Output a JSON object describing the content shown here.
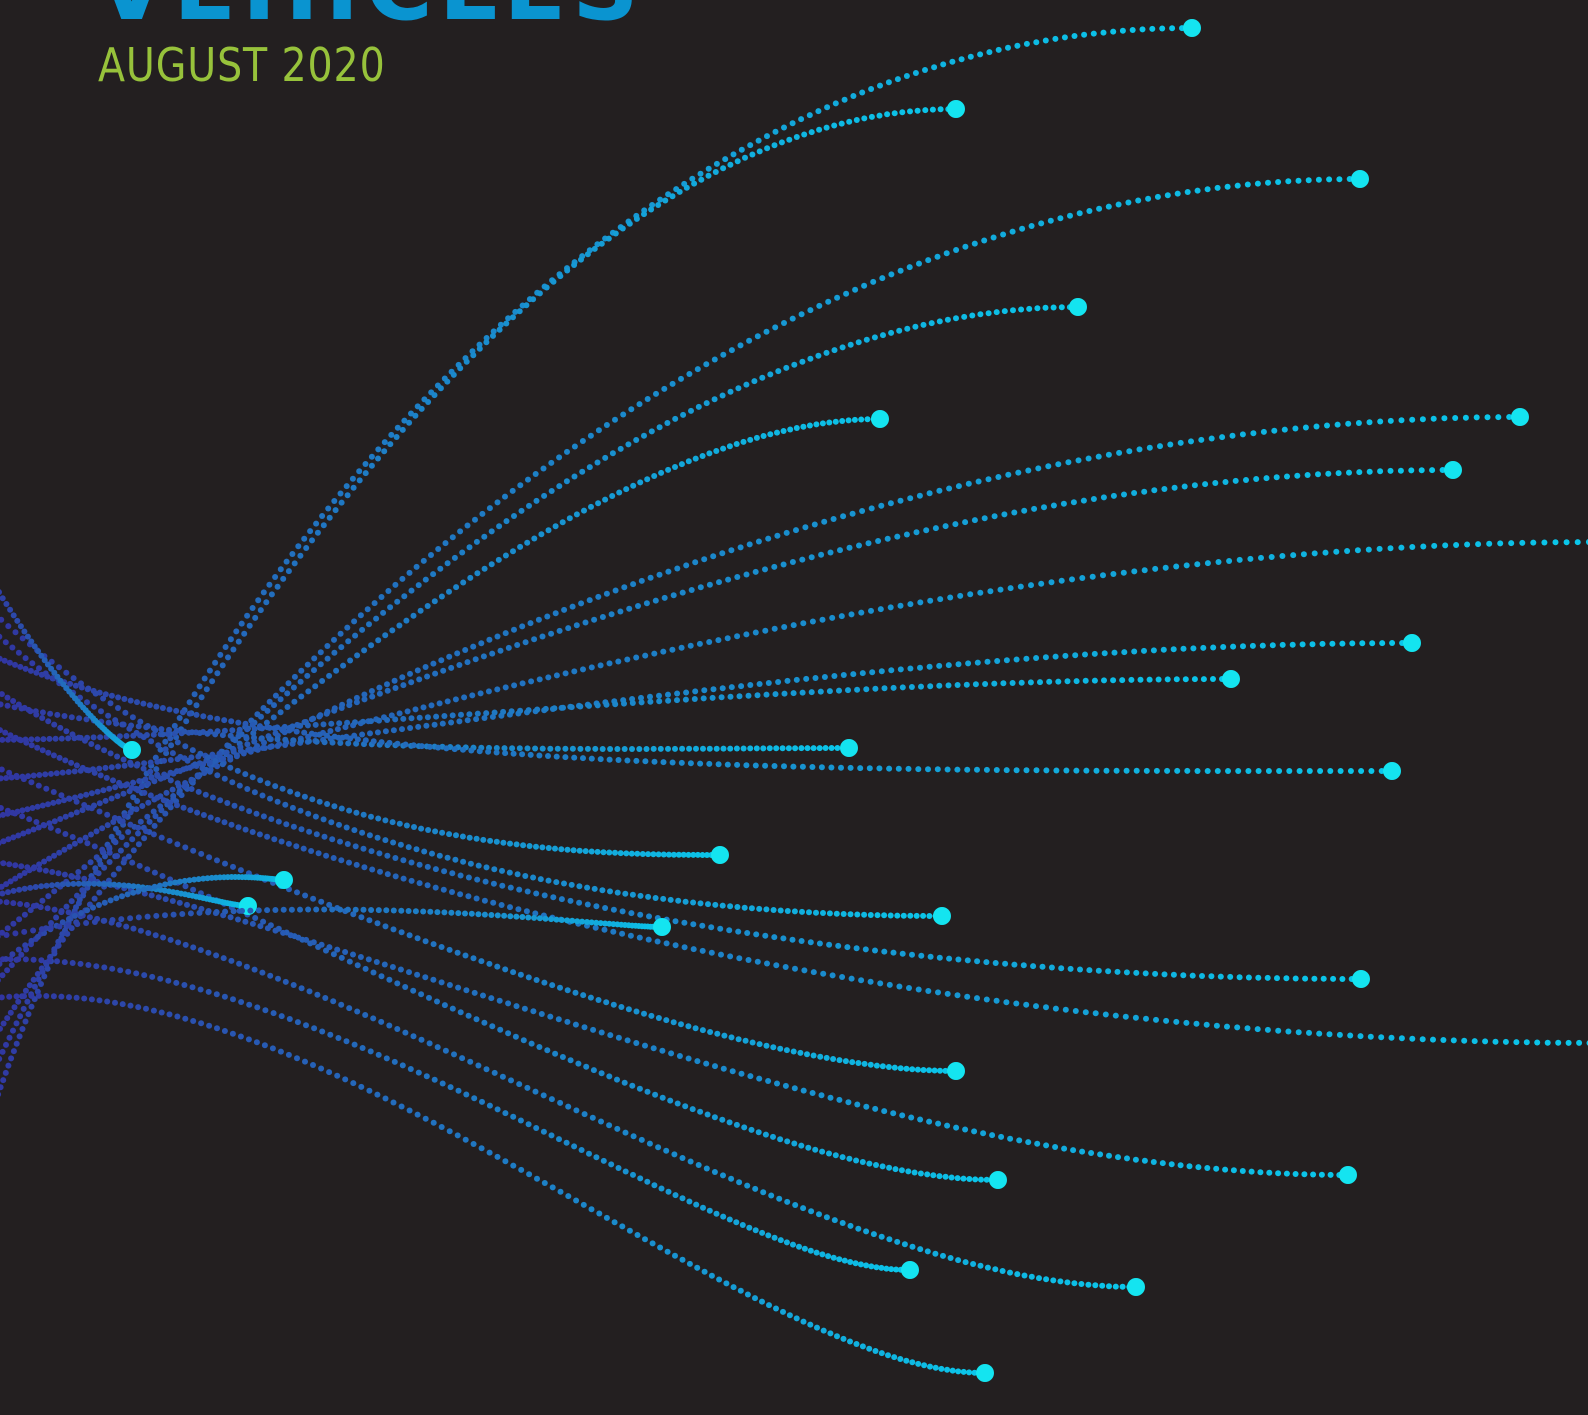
{
  "title": "VEHICLES",
  "date": "AUGUST 2020"
}
